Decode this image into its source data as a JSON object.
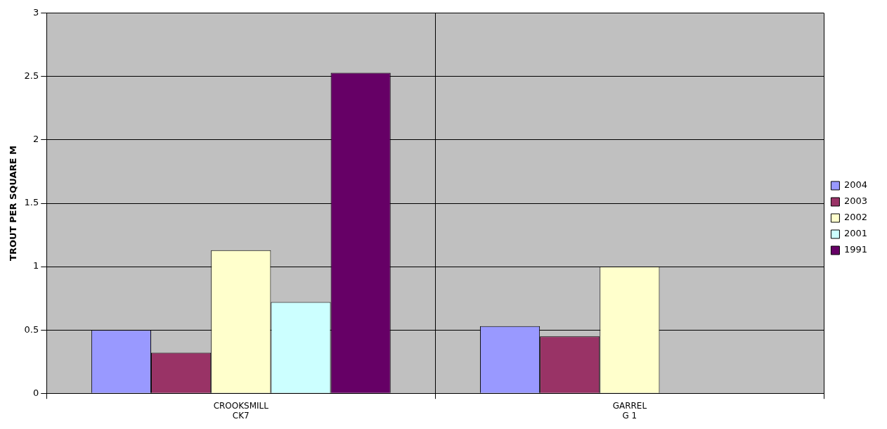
{
  "chart_data": {
    "type": "bar",
    "ylabel": "TROUT PER SQUARE M",
    "categories": [
      "CROOKSMILL\nCK7",
      "GARREL\nG 1"
    ],
    "series": [
      {
        "name": "2004",
        "color": "#9999ff",
        "values": [
          0.5,
          0.53
        ]
      },
      {
        "name": "2003",
        "color": "#993366",
        "values": [
          0.32,
          0.45
        ]
      },
      {
        "name": "2002",
        "color": "#ffffcc",
        "values": [
          1.13,
          1.0
        ]
      },
      {
        "name": "2001",
        "color": "#ccffff",
        "values": [
          0.72,
          null
        ]
      },
      {
        "name": "1991",
        "color": "#660066",
        "values": [
          2.53,
          null
        ]
      }
    ],
    "ylim": [
      0,
      3
    ],
    "yticks": [
      0,
      0.5,
      1,
      1.5,
      2,
      2.5,
      3
    ],
    "grid": true,
    "legend": "right"
  }
}
